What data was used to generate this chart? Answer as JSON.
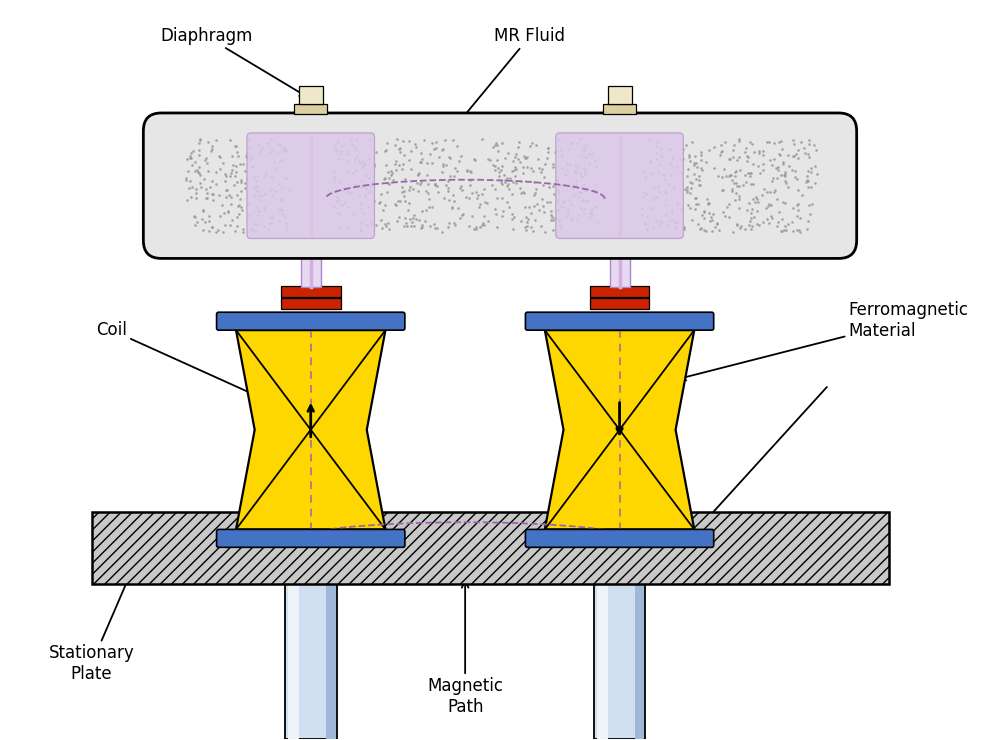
{
  "colors": {
    "bg_color": "#ffffff",
    "yellow_coil": "#FFD700",
    "yellow_coil_dark": "#FFA500",
    "blue_plate": "#4472C4",
    "red_ring": "#CC2200",
    "gray_body": "#C8C8C8",
    "purple_fluid": "#C8A0C8",
    "lavender_fluid": "#E0D0E8",
    "white_cap": "#F5F0E0",
    "cream_cap": "#E8D8B0",
    "black": "#000000",
    "dashed_purple": "#9966AA",
    "blue_cylinder": "#A0B8D8",
    "blue_cylinder_light": "#D0E0F0"
  },
  "labels": {
    "diaphragm": "Diaphragm",
    "mr_fluid": "MR Fluid",
    "coil": "Coil",
    "ferromagnetic": "Ferromagnetic\nMaterial",
    "stationary": "Stationary\nPlate",
    "magnetic": "Magnetic\nPath"
  }
}
